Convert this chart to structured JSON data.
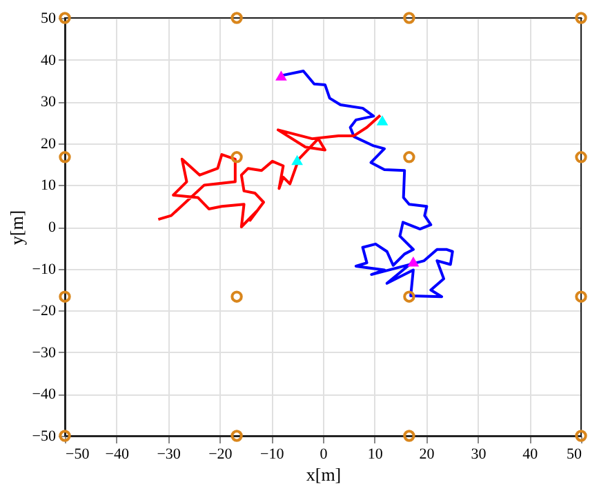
{
  "chart_data": {
    "type": "line",
    "xlabel": "x[m]",
    "ylabel": "y[m]",
    "xlim": [
      -50,
      50
    ],
    "ylim": [
      -50,
      50
    ],
    "xticks": [
      -50,
      -40,
      -30,
      -20,
      -10,
      0,
      10,
      20,
      30,
      40,
      50
    ],
    "yticks": [
      -50,
      -40,
      -30,
      -20,
      -10,
      0,
      10,
      20,
      30,
      40,
      50
    ],
    "grid": true,
    "series": [
      {
        "color": "#0000ff",
        "marker": "none",
        "line_style": "solid",
        "x": [
          -8.1,
          -3.8,
          -1.7,
          0.4,
          1.3,
          3.4,
          7.7,
          9.8,
          6.4,
          5.3,
          6.0,
          9.8,
          11.9,
          9.3,
          11.9,
          15.8,
          15.6,
          16.7,
          20.1,
          19.7,
          20.9,
          18.8,
          15.5,
          14.9,
          17.5,
          15.8,
          13.6,
          12.4,
          10.2,
          7.7,
          8.5,
          6.4,
          11.9,
          9.4,
          19.6,
          22.1,
          23.9,
          25.1,
          24.7,
          22.1,
          23.4,
          20.9,
          23.0,
          17.0,
          17.5,
          12.4,
          17.5
        ],
        "values": [
          36.2,
          37.3,
          34.2,
          34.0,
          30.8,
          29.2,
          28.4,
          26.5,
          25.6,
          23.8,
          21.6,
          19.4,
          18.7,
          15.4,
          13.7,
          13.5,
          7.0,
          5.4,
          4.9,
          2.7,
          0.5,
          -0.5,
          1.1,
          -2.2,
          -5.4,
          -6.5,
          -9.2,
          -5.9,
          -4.1,
          -4.9,
          -8.6,
          -9.4,
          -10.3,
          -11.4,
          -8.1,
          -5.4,
          -5.4,
          -5.9,
          -9.0,
          -8.1,
          -12.4,
          -15.1,
          -16.7,
          -16.5,
          -10.3,
          -13.5,
          -8.3
        ]
      },
      {
        "color": "#ff0000",
        "marker": "none",
        "line_style": "solid",
        "x": [
          11.1,
          8.5,
          6.0,
          3.0,
          -2.1,
          -8.7,
          -3.4,
          0.4,
          -0.9,
          -4.7,
          -6.4,
          -7.7,
          -8.5,
          -7.7,
          -9.8,
          -11.9,
          -14.5,
          -15.8,
          -15.3,
          -13.2,
          -11.5,
          -14.1,
          -12.8,
          -15.8,
          -15.3,
          -19.6,
          -22.1,
          -24.2,
          -29.0,
          -26.4,
          -27.3,
          -23.9,
          -20.4,
          -19.6,
          -17.0,
          -17.0,
          -23.0,
          -29.4,
          -31.9
        ],
        "values": [
          26.7,
          23.8,
          21.8,
          21.8,
          21.1,
          23.2,
          19.1,
          18.4,
          21.1,
          16.2,
          10.3,
          11.9,
          9.2,
          14.6,
          15.7,
          13.5,
          14.0,
          12.4,
          8.6,
          8.1,
          5.9,
          1.6,
          3.8,
          0.0,
          5.4,
          4.9,
          4.3,
          7.0,
          7.6,
          10.8,
          16.2,
          12.4,
          14.0,
          17.3,
          16.2,
          10.8,
          10.0,
          2.7,
          1.8
        ]
      },
      {
        "type": "scatter",
        "color": "#d9861c",
        "marker": "circle",
        "x": [
          -50,
          -16.7,
          16.7,
          50,
          -50,
          -16.7,
          16.7,
          50,
          -50,
          -16.7,
          16.7,
          50,
          -50,
          -16.7,
          16.7,
          50
        ],
        "values": [
          50,
          50,
          50,
          50,
          16.7,
          16.7,
          16.7,
          16.7,
          -16.7,
          -16.7,
          -16.7,
          -16.7,
          -50,
          -50,
          -50,
          -50
        ]
      },
      {
        "type": "scatter",
        "color": "#ff00ff",
        "marker": "triangle",
        "x": [
          -8.1,
          17.5
        ],
        "values": [
          36.2,
          -8.3
        ]
      },
      {
        "type": "scatter",
        "color": "#00ffff",
        "marker": "triangle",
        "x": [
          11.5,
          -5.0
        ],
        "values": [
          25.5,
          16.0
        ]
      }
    ]
  }
}
